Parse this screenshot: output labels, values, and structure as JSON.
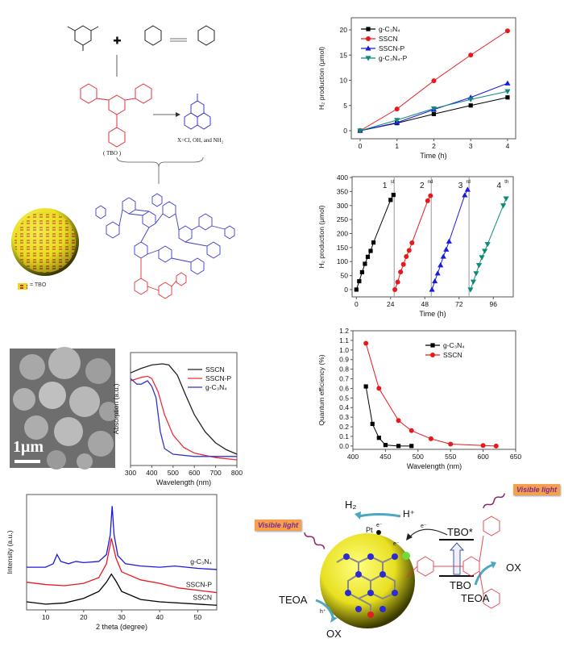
{
  "scheme": {
    "tbo_label": "( TBO )",
    "x_substituents": "X=Cl, OH, and NH₂",
    "tbo_legend": "= TBO",
    "colors": {
      "tbo": "#e0303a",
      "heptazine": "#3a3ad0",
      "sphere": "#e8e020"
    }
  },
  "sem": {
    "scale_bar": "1μm"
  },
  "mechanism": {
    "visible_light_left": "Visible light",
    "visible_light_right": "Visible light",
    "h2": "H₂",
    "h_plus": "H⁺",
    "pt": "Pt",
    "e_minus_1": "e⁻",
    "e_minus_2": "e⁻",
    "e_minus_3": "e⁻",
    "tbo_excited": "TBO*",
    "tbo_ground": "TBO",
    "ox_right": "OX",
    "teoa_right": "TEOA",
    "teoa_left": "TEOA",
    "h_hole": "h⁺",
    "ox_bottom": "OX"
  },
  "chart_data": [
    {
      "type": "line",
      "xlabel": "Time (h)",
      "ylabel": "H₂ production (μmol)",
      "xlim": [
        -0.24,
        4.22
      ],
      "ylim": [
        -1.6,
        22.4
      ],
      "xticks": [
        0,
        1,
        2,
        3,
        4
      ],
      "yticks": [
        0,
        5,
        10,
        15,
        20
      ],
      "legend": "top-left",
      "series": [
        {
          "name": "g-C₃N₄",
          "color": "#000000",
          "marker": "square",
          "x": [
            0,
            1,
            2,
            3,
            4
          ],
          "y": [
            0,
            1.5,
            3.3,
            5.0,
            6.6
          ]
        },
        {
          "name": "SSCN",
          "color": "#e8191e",
          "marker": "circle",
          "x": [
            0,
            1,
            2,
            3,
            4
          ],
          "y": [
            0,
            4.3,
            9.9,
            15.0,
            19.8
          ]
        },
        {
          "name": "SSCN-P",
          "color": "#1a1adf",
          "marker": "triangle-up",
          "x": [
            0,
            1,
            2,
            3,
            4
          ],
          "y": [
            0,
            1.6,
            4.2,
            6.6,
            9.4
          ]
        },
        {
          "name": "g-C₃N₄-P",
          "color": "#0f8a7a",
          "marker": "triangle-down",
          "x": [
            0,
            1,
            2,
            3,
            4
          ],
          "y": [
            0,
            2.1,
            4.4,
            6.2,
            7.8
          ]
        }
      ]
    },
    {
      "type": "line",
      "xlabel": "Time (h)",
      "ylabel": "H₂ production (μmol)",
      "xlim": [
        -3,
        110
      ],
      "ylim": [
        -26,
        403
      ],
      "xticks": [
        0,
        24,
        48,
        72,
        96
      ],
      "yticks": [
        0,
        50,
        100,
        150,
        200,
        250,
        300,
        350,
        400
      ],
      "cycle_separators": [
        26.5,
        52.5,
        79
      ],
      "cycle_labels": [
        {
          "num": "1",
          "sup": "st"
        },
        {
          "num": "2",
          "sup": "nd"
        },
        {
          "num": "3",
          "sup": "rd"
        },
        {
          "num": "4",
          "sup": "th"
        }
      ],
      "series": [
        {
          "color": "#000000",
          "marker": "square",
          "x": [
            0,
            2,
            4,
            6,
            8,
            10,
            12,
            24,
            26
          ],
          "y": [
            0,
            30,
            62,
            92,
            117,
            138,
            168,
            320,
            338
          ]
        },
        {
          "color": "#e8191e",
          "marker": "circle",
          "x": [
            27,
            29,
            31,
            33,
            35,
            37,
            39,
            50,
            52
          ],
          "y": [
            0,
            27,
            63,
            90,
            118,
            140,
            167,
            317,
            335
          ]
        },
        {
          "color": "#1a1adf",
          "marker": "triangle-up",
          "x": [
            53,
            55,
            57,
            59,
            61,
            63,
            65,
            76,
            78
          ],
          "y": [
            0,
            30,
            58,
            87,
            118,
            143,
            172,
            337,
            357
          ]
        },
        {
          "color": "#0f8a7a",
          "marker": "triangle-down",
          "x": [
            80,
            82,
            84,
            86,
            88,
            90,
            92,
            103,
            105
          ],
          "y": [
            0,
            28,
            58,
            87,
            115,
            138,
            162,
            300,
            325
          ]
        }
      ]
    },
    {
      "type": "line",
      "xlabel": "Wavelength (nm)",
      "ylabel": "Quantum efficiency (%)",
      "xlim": [
        400,
        650
      ],
      "ylim": [
        -0.035,
        1.2
      ],
      "xticks": [
        400,
        450,
        500,
        550,
        600,
        650
      ],
      "yticks": [
        0,
        0.1,
        0.2,
        0.3,
        0.4,
        0.5,
        0.6,
        0.7,
        0.8,
        0.9,
        1.0,
        1.1,
        1.2
      ],
      "ytick_decimals": 1,
      "legend": "top-right",
      "series": [
        {
          "name": "g-C₃N₄",
          "color": "#000000",
          "marker": "square",
          "x": [
            420,
            430,
            440,
            450,
            470,
            490
          ],
          "y": [
            0.62,
            0.23,
            0.085,
            0.01,
            0,
            0
          ]
        },
        {
          "name": "SSCN",
          "color": "#e8191e",
          "marker": "circle",
          "x": [
            420,
            440,
            470,
            490,
            520,
            550,
            600,
            620
          ],
          "y": [
            1.07,
            0.6,
            0.265,
            0.16,
            0.075,
            0.02,
            0.005,
            0
          ]
        }
      ]
    },
    {
      "type": "line",
      "xlabel": "Wavelength (nm)",
      "ylabel": "Absorption (a.u.)",
      "xlim": [
        300,
        800
      ],
      "ylim": [
        0,
        1
      ],
      "xticks": [
        300,
        400,
        500,
        600,
        700,
        800
      ],
      "yticks": [],
      "legend": "top-right",
      "series": [
        {
          "name": "SSCN",
          "color": "#222222",
          "x": [
            300,
            350,
            400,
            450,
            480,
            520,
            560,
            600,
            650,
            700,
            750,
            800
          ],
          "y": [
            0.82,
            0.86,
            0.89,
            0.9,
            0.89,
            0.8,
            0.62,
            0.45,
            0.3,
            0.2,
            0.14,
            0.1
          ]
        },
        {
          "name": "SSCN-P",
          "color": "#e8303a",
          "x": [
            300,
            350,
            380,
            400,
            430,
            460,
            500,
            550,
            600,
            700,
            800
          ],
          "y": [
            0.75,
            0.78,
            0.79,
            0.77,
            0.65,
            0.45,
            0.27,
            0.16,
            0.11,
            0.07,
            0.05
          ]
        },
        {
          "name": "g-C₃N₄",
          "color": "#3333cc",
          "x": [
            300,
            330,
            350,
            380,
            400,
            420,
            440,
            460,
            500,
            600,
            800
          ],
          "y": [
            0.77,
            0.72,
            0.72,
            0.75,
            0.7,
            0.6,
            0.3,
            0.15,
            0.1,
            0.08,
            0.08
          ]
        }
      ]
    },
    {
      "type": "line",
      "xlabel": "2 theta (degree)",
      "ylabel": "Intensity (a.u.)",
      "xlim": [
        5,
        55
      ],
      "ylim": [
        0,
        1
      ],
      "xticks": [
        10,
        20,
        30,
        40,
        50
      ],
      "yticks": [],
      "series": [
        {
          "name": "g-C₃N₄",
          "color": "#1a1adf",
          "x": [
            5,
            10,
            12,
            13,
            14,
            16,
            18,
            20,
            24,
            26,
            27,
            27.5,
            28,
            29,
            31,
            35,
            40,
            44,
            50,
            55
          ],
          "y": [
            0.37,
            0.37,
            0.4,
            0.48,
            0.42,
            0.4,
            0.42,
            0.41,
            0.42,
            0.48,
            0.65,
            0.9,
            0.65,
            0.47,
            0.4,
            0.38,
            0.37,
            0.38,
            0.36,
            0.35
          ]
        },
        {
          "name": "SSCN-P",
          "color": "#e8191e",
          "x": [
            5,
            10,
            15,
            20,
            24,
            26,
            27.3,
            28.5,
            30,
            35,
            40,
            45,
            55
          ],
          "y": [
            0.24,
            0.22,
            0.21,
            0.23,
            0.28,
            0.4,
            0.62,
            0.45,
            0.33,
            0.26,
            0.23,
            0.19,
            0.15
          ]
        },
        {
          "name": "SSCN",
          "color": "#000000",
          "x": [
            5,
            10,
            15,
            20,
            24,
            26,
            27.3,
            28.5,
            30,
            35,
            40,
            55
          ],
          "y": [
            0.07,
            0.05,
            0.06,
            0.1,
            0.16,
            0.24,
            0.31,
            0.25,
            0.16,
            0.09,
            0.07,
            0.04
          ]
        }
      ]
    }
  ]
}
